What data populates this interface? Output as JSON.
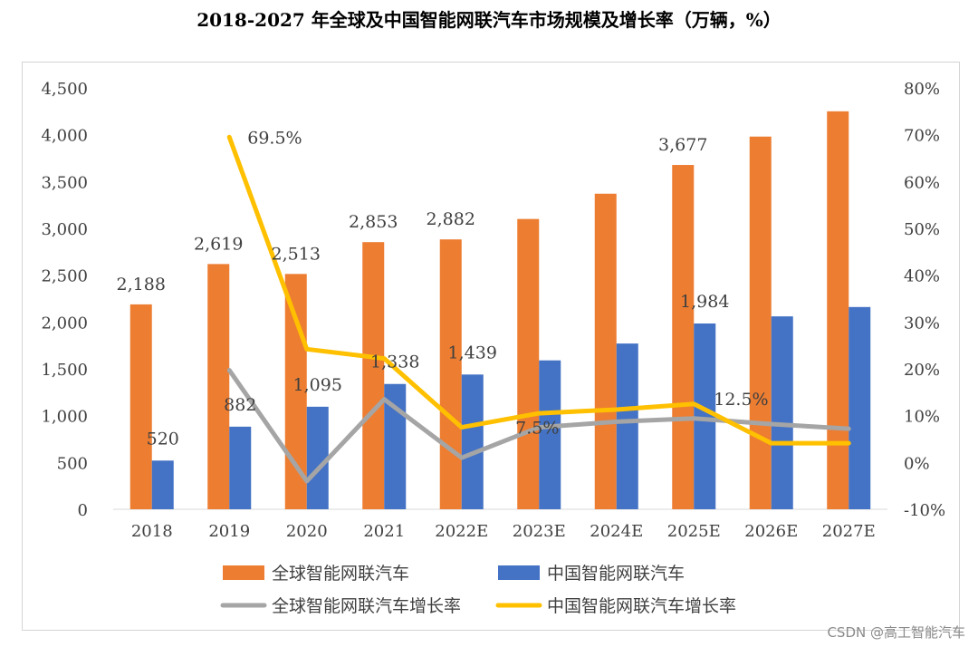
{
  "colors": {
    "global_sales": "#ED7D31",
    "china_sales": "#4472C4",
    "global_growth": "#A5A5A5",
    "china_growth": "#FFC000"
  },
  "chart_data": {
    "type": "bar",
    "title": "2018-2027 年全球及中国智能网联汽车市场规模及增长率（万辆，%）",
    "categories": [
      "2018",
      "2019",
      "2020",
      "2021",
      "2022E",
      "2023E",
      "2024E",
      "2025E",
      "2026E",
      "2027E"
    ],
    "y_left": {
      "min": 0,
      "max": 4500,
      "ticks": [
        0,
        500,
        1000,
        1500,
        2000,
        2500,
        3000,
        3500,
        4000,
        4500
      ],
      "tick_labels": [
        "0",
        "500",
        "1,000",
        "1,500",
        "2,000",
        "2,500",
        "3,000",
        "3,500",
        "4,000",
        "4,500"
      ]
    },
    "y_right": {
      "min": -10,
      "max": 80,
      "ticks": [
        -10,
        0,
        10,
        20,
        30,
        40,
        50,
        60,
        70,
        80
      ],
      "tick_labels": [
        "-10%",
        "0%",
        "10%",
        "20%",
        "30%",
        "40%",
        "50%",
        "60%",
        "70%",
        "80%"
      ]
    },
    "series": [
      {
        "name": "全球智能网联汽车",
        "kind": "bar",
        "axis": "left",
        "color_key": "global_sales",
        "values": [
          2188,
          2619,
          2513,
          2853,
          2882,
          3100,
          3370,
          3677,
          3980,
          4250
        ],
        "labels": [
          "2,188",
          "2,619",
          "2,513",
          "2,853",
          "2,882",
          null,
          null,
          "3,677",
          null,
          null
        ]
      },
      {
        "name": "中国智能网联汽车",
        "kind": "bar",
        "axis": "left",
        "color_key": "china_sales",
        "values": [
          520,
          882,
          1095,
          1338,
          1439,
          1590,
          1770,
          1984,
          2060,
          2160
        ],
        "labels": [
          "520",
          "882",
          "1,095",
          "1,338",
          "1,439",
          null,
          null,
          "1,984",
          null,
          null
        ]
      },
      {
        "name": "全球智能网联汽车增长率",
        "kind": "line",
        "axis": "right",
        "color_key": "global_growth",
        "values": [
          null,
          19.7,
          -4.0,
          13.5,
          1.0,
          7.5,
          8.7,
          9.4,
          8.2,
          7.2
        ],
        "labels": [
          null,
          null,
          null,
          null,
          null,
          "7.5%",
          null,
          null,
          null,
          null
        ]
      },
      {
        "name": "中国智能网联汽车增长率",
        "kind": "line",
        "axis": "right",
        "color_key": "china_growth",
        "values": [
          null,
          69.5,
          24.2,
          22.2,
          7.5,
          10.5,
          11.3,
          12.5,
          4.1,
          4.1
        ],
        "labels": [
          null,
          "69.5%",
          null,
          null,
          null,
          null,
          null,
          "12.5%",
          null,
          null
        ]
      }
    ],
    "legend_position": "bottom"
  },
  "watermark": "CSDN @高工智能汽车"
}
